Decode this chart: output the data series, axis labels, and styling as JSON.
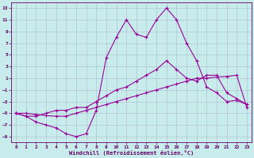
{
  "background_color": "#c8ecec",
  "grid_color": "#aabbcc",
  "line_color": "#990099",
  "xlabel": "Windchill (Refroidissement éolien,°C)",
  "x_hours": [
    0,
    1,
    2,
    3,
    4,
    5,
    6,
    7,
    8,
    9,
    10,
    11,
    12,
    13,
    14,
    15,
    16,
    17,
    18,
    19,
    20,
    21,
    22,
    23
  ],
  "series1": [
    -5,
    -5.5,
    -6.5,
    -7,
    -7.5,
    -8.5,
    -9,
    -8.5,
    -4.5,
    4.5,
    8,
    11,
    8.5,
    8,
    11,
    13,
    11,
    7,
    4,
    -0.5,
    -1.5,
    -3,
    -2.8,
    -3.5
  ],
  "series2": [
    -5,
    -5.5,
    -5.5,
    -5,
    -4.5,
    -4.5,
    -4,
    -4,
    -3,
    -2,
    -1,
    -0.5,
    0.5,
    1.5,
    2.5,
    4,
    2.5,
    1,
    0.5,
    1.5,
    1.5,
    -1.5,
    -2.5,
    -3.5
  ],
  "series3": [
    -5,
    -5,
    -5.2,
    -5.4,
    -5.5,
    -5.5,
    -5,
    -4.5,
    -4,
    -3.5,
    -3,
    -2.5,
    -2,
    -1.5,
    -1,
    -0.5,
    0,
    0.5,
    1,
    1,
    1.2,
    1.3,
    1.5,
    -4
  ],
  "ylim": [
    -10,
    14
  ],
  "yticks": [
    -9,
    -7,
    -5,
    -3,
    -1,
    1,
    3,
    5,
    7,
    9,
    11,
    13
  ],
  "xticks": [
    0,
    1,
    2,
    3,
    4,
    5,
    6,
    7,
    8,
    9,
    10,
    11,
    12,
    13,
    14,
    15,
    16,
    17,
    18,
    19,
    20,
    21,
    22,
    23
  ]
}
